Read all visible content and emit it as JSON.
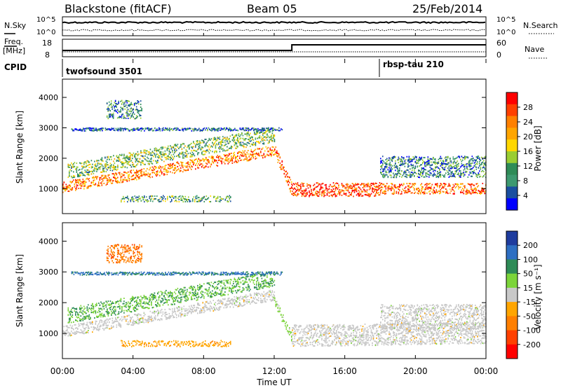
{
  "header": {
    "station": "Blackstone (fitACF)",
    "beam": "Beam 05",
    "date": "25/Feb/2014"
  },
  "summary_panels": {
    "nsky": {
      "label": "N.Sky",
      "left_ticks": [
        "10^5",
        "10^0"
      ],
      "right_ticks": [
        "10^5",
        "10^0"
      ],
      "right_label": "N.Search"
    },
    "freq": {
      "label_line1": "Freq.",
      "label_line2": "[MHz]",
      "left_ticks": [
        "18",
        "8"
      ],
      "right_ticks": [
        "60",
        "0"
      ],
      "right_label": "Nave"
    },
    "cpid": {
      "label": "CPID",
      "programs": [
        {
          "name": "twofsound 3501",
          "start_hour": 0,
          "end_hour": 18
        },
        {
          "name": "rbsp-tau 210",
          "start_hour": 18,
          "end_hour": 24
        }
      ]
    }
  },
  "axis": {
    "xlabel": "Time UT",
    "xticks": [
      "00:00",
      "04:00",
      "08:00",
      "12:00",
      "16:00",
      "20:00",
      "00:00"
    ],
    "ylabel": "Slant Range [km]",
    "yticks": [
      "1000",
      "2000",
      "3000",
      "4000"
    ]
  },
  "colorbars": {
    "power": {
      "label": "Power [dB]",
      "ticks": [
        "28",
        "24",
        "20",
        "16",
        "12",
        "8",
        "4"
      ],
      "colors": [
        "#ff0000",
        "#ff4000",
        "#ff8000",
        "#ffa500",
        "#ffd700",
        "#9acd32",
        "#2e8b57",
        "#3d9970",
        "#1a4fa0",
        "#0000ff"
      ]
    },
    "velocity": {
      "label": "Velocity [m s⁻¹]",
      "ticks": [
        "200",
        "100",
        "50",
        "15",
        "-15",
        "-50",
        "-100",
        "-200"
      ],
      "colors": [
        "#1f3c9e",
        "#2e6fc2",
        "#2e8b57",
        "#7cd43a",
        "#c8c8c8",
        "#ffa500",
        "#ff7f00",
        "#ff4000",
        "#ff0000"
      ]
    }
  },
  "chart_data": [
    {
      "type": "heatmap",
      "name": "power",
      "xlabel": "Time UT",
      "ylabel": "Slant Range [km]",
      "xlim": [
        0,
        24
      ],
      "ylim": [
        180,
        4600
      ],
      "colorbar_label": "Power [dB]",
      "colorbar_range": [
        0,
        30
      ],
      "regions": [
        {
          "desc": "main band",
          "t0": 0,
          "t1": 12.0,
          "r0_start": 1000,
          "r0_end": 2200,
          "width": 350,
          "value": 22
        },
        {
          "desc": "main band fall",
          "t0": 12.0,
          "t1": 13.0,
          "r0_start": 2200,
          "r0_end": 900,
          "width": 400,
          "value": 24
        },
        {
          "desc": "afternoon band",
          "t0": 13.0,
          "t1": 18.0,
          "r0_start": 900,
          "r0_end": 900,
          "width": 450,
          "value": 26
        },
        {
          "desc": "evening band",
          "t0": 18.0,
          "t1": 24,
          "r0_start": 950,
          "r0_end": 950,
          "width": 350,
          "value": 24
        },
        {
          "desc": "upper band",
          "t0": 0.3,
          "t1": 12.0,
          "r0_start": 1500,
          "r0_end": 2700,
          "width": 500,
          "value": 12
        },
        {
          "desc": "evening upper",
          "t0": 18.0,
          "t1": 24,
          "r0_start": 1600,
          "r0_end": 1600,
          "width": 700,
          "value": 8
        },
        {
          "desc": "ground scatter patch",
          "t0": 3.3,
          "t1": 9.5,
          "r0_start": 650,
          "r0_end": 650,
          "width": 200,
          "value": 10
        },
        {
          "desc": "far patch",
          "t0": 2.5,
          "t1": 4.5,
          "r0_start": 3500,
          "r0_end": 3500,
          "width": 600,
          "value": 8
        },
        {
          "desc": "3000 km line",
          "t0": 0.5,
          "t1": 12.5,
          "r0_start": 2950,
          "r0_end": 2950,
          "width": 100,
          "value": 6
        }
      ]
    },
    {
      "type": "heatmap",
      "name": "velocity",
      "xlabel": "Time UT",
      "ylabel": "Slant Range [km]",
      "xlim": [
        0,
        24
      ],
      "ylim": [
        180,
        4600
      ],
      "colorbar_label": "Velocity [m s⁻¹]",
      "colorbar_range": [
        -250,
        250
      ],
      "regions": [
        {
          "desc": "ground scatter band",
          "t0": 0,
          "t1": 12.0,
          "r0_start": 1000,
          "r0_end": 2200,
          "width": 350,
          "value": 0
        },
        {
          "desc": "green descent",
          "t0": 12.0,
          "t1": 13.0,
          "r0_start": 2000,
          "r0_end": 800,
          "width": 300,
          "value": 40
        },
        {
          "desc": "afternoon ground",
          "t0": 13.0,
          "t1": 24,
          "r0_start": 800,
          "r0_end": 900,
          "width": 700,
          "value": 0
        },
        {
          "desc": "mixed upper",
          "t0": 0.3,
          "t1": 12.0,
          "r0_start": 1500,
          "r0_end": 2700,
          "width": 500,
          "value": 80
        },
        {
          "desc": "evening light",
          "t0": 18.0,
          "t1": 24,
          "r0_start": 1400,
          "r0_end": 1400,
          "width": 800,
          "value": 0
        },
        {
          "desc": "orange patch",
          "t0": 3.3,
          "t1": 9.5,
          "r0_start": 650,
          "r0_end": 650,
          "width": 200,
          "value": -60
        },
        {
          "desc": "far patch",
          "t0": 2.5,
          "t1": 4.5,
          "r0_start": 3500,
          "r0_end": 3500,
          "width": 600,
          "value": -120
        },
        {
          "desc": "3000 km line",
          "t0": 0.5,
          "t1": 12.5,
          "r0_start": 2950,
          "r0_end": 2950,
          "width": 100,
          "value": 150
        }
      ]
    }
  ]
}
